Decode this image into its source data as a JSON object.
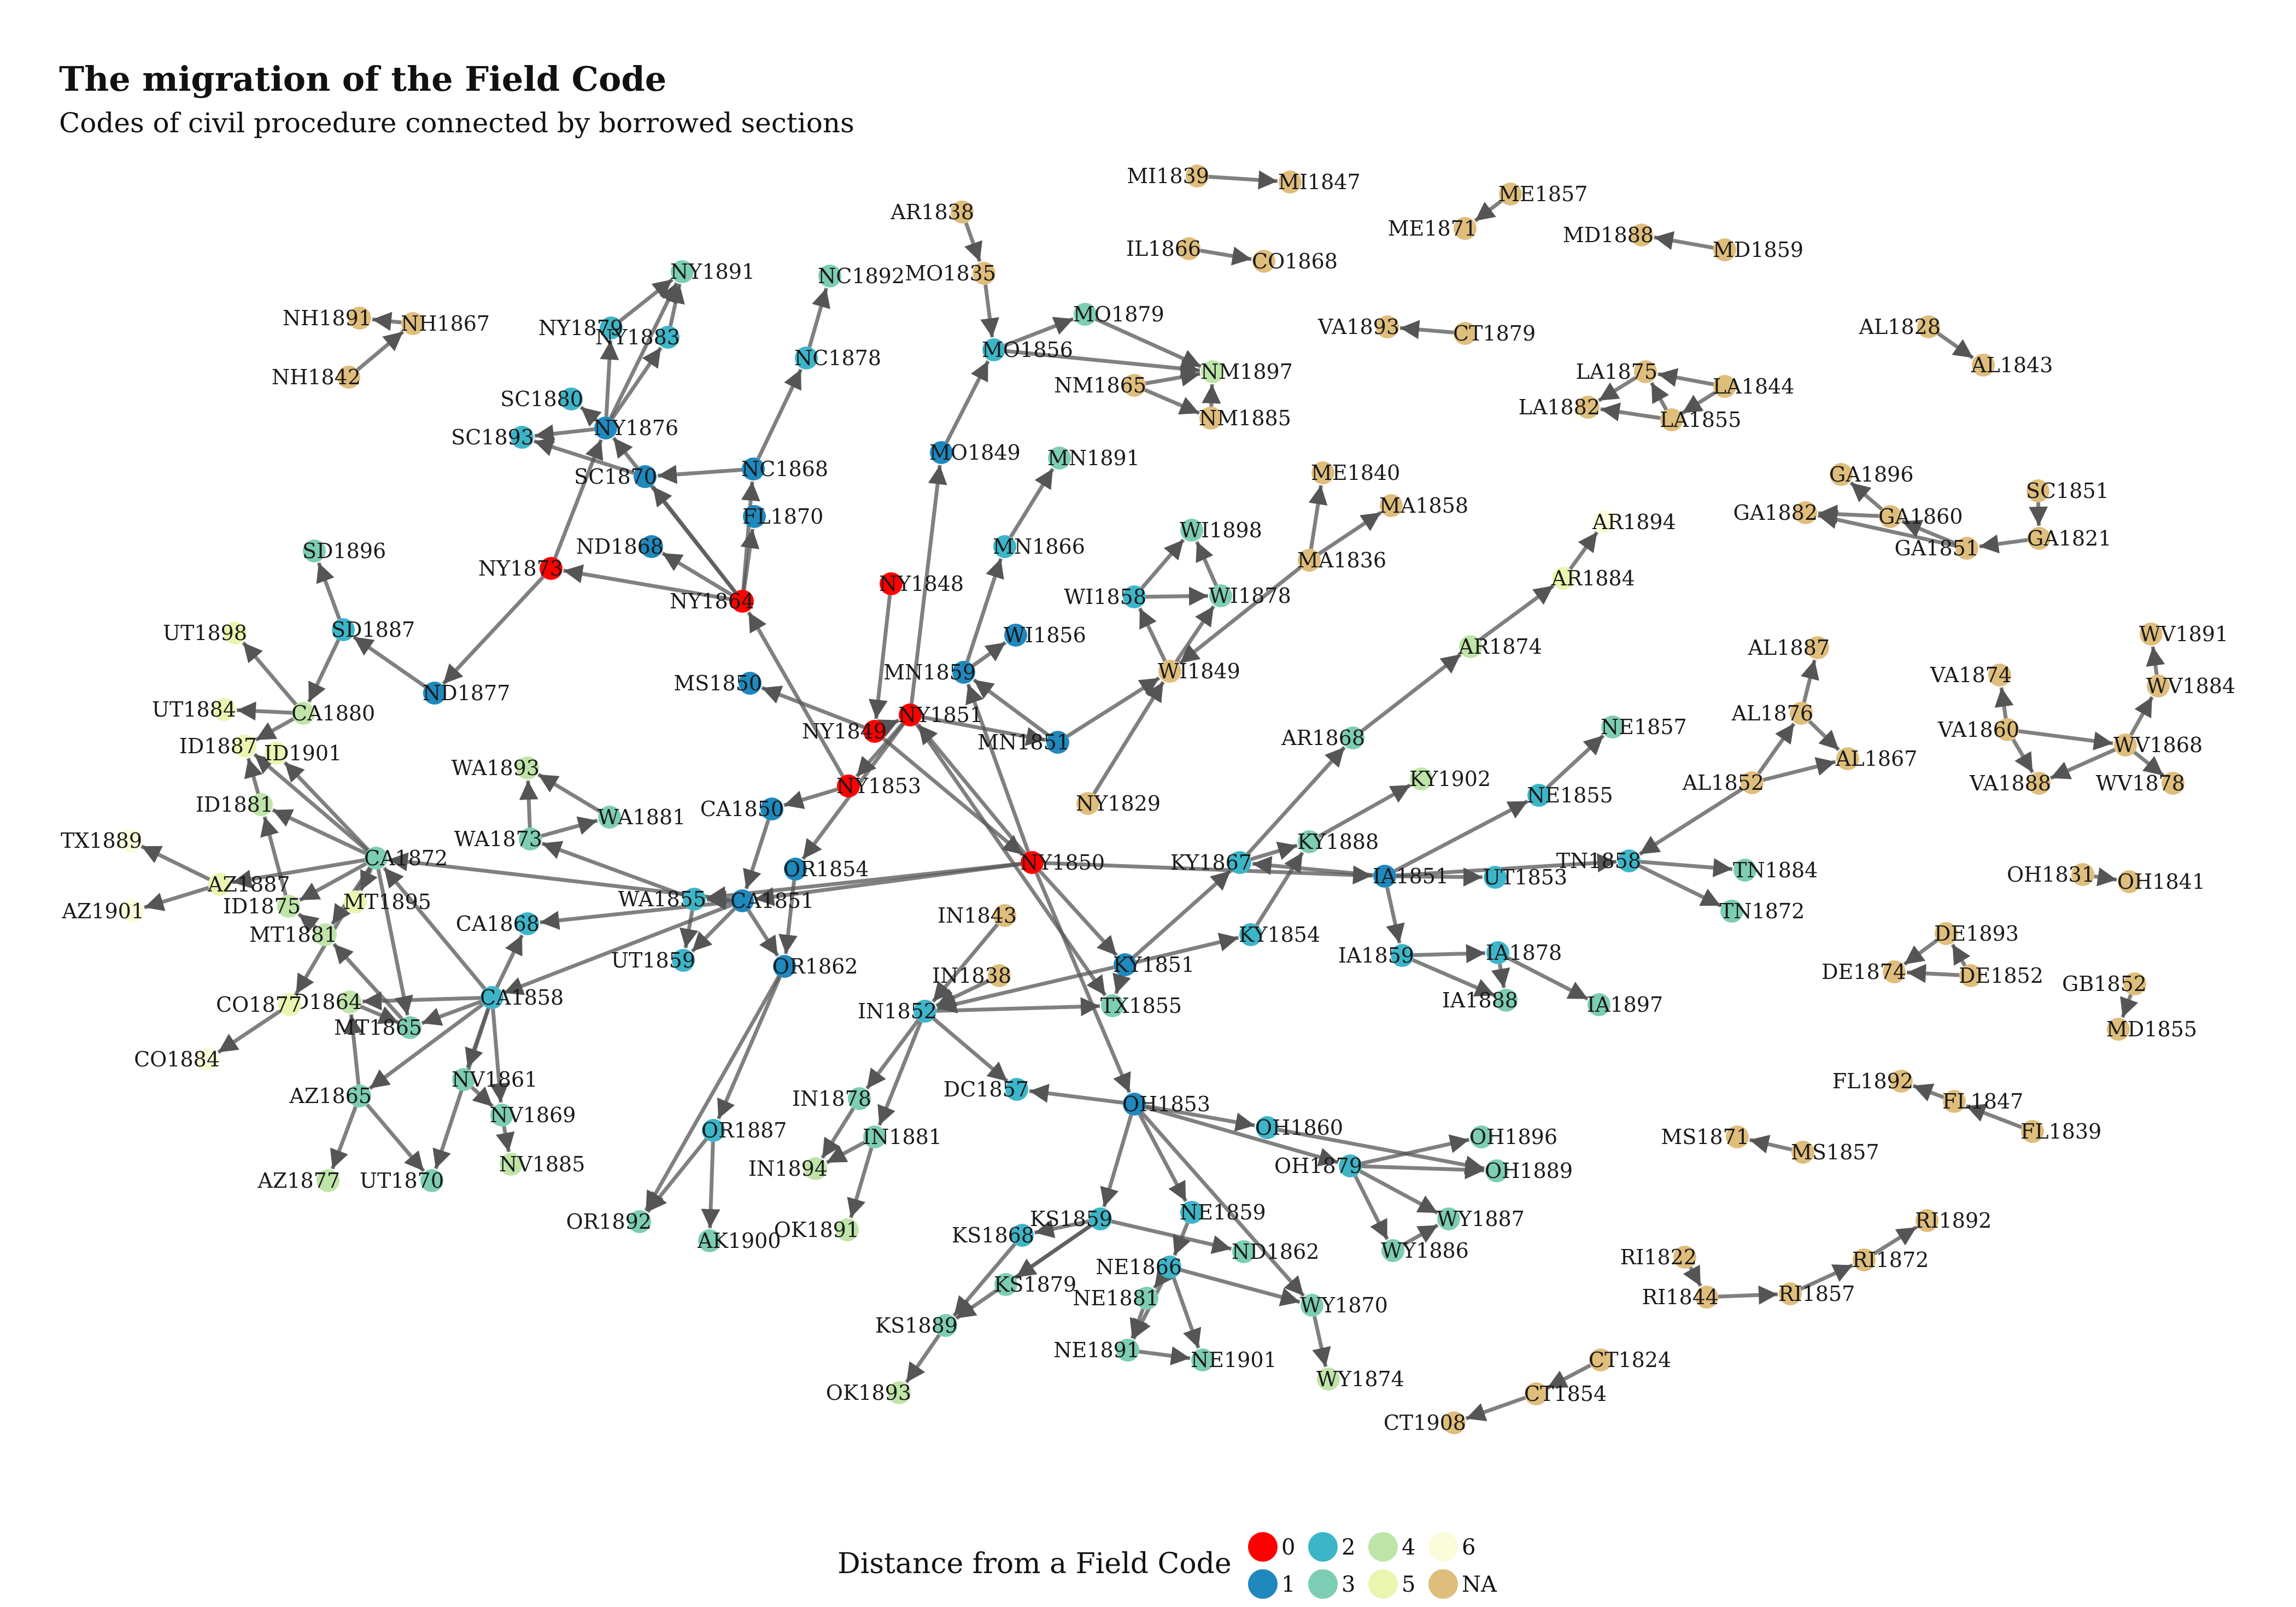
{
  "title": "The migration of the Field Code",
  "subtitle": "Codes of civil procedure connected by borrowed sections",
  "legend": {
    "title": "Distance from a Field Code",
    "items": [
      {
        "label": "0",
        "color": "#ff0000"
      },
      {
        "label": "1",
        "color": "#1f88bd"
      },
      {
        "label": "2",
        "color": "#3db5c8"
      },
      {
        "label": "3",
        "color": "#7ccdb4"
      },
      {
        "label": "4",
        "color": "#bfe4a8"
      },
      {
        "label": "5",
        "color": "#eaf6b0"
      },
      {
        "label": "6",
        "color": "#fbfcd9"
      },
      {
        "label": "NA",
        "color": "#dfbd7b"
      }
    ]
  },
  "colors": {
    "0": "#ff0000",
    "1": "#1f88bd",
    "2": "#3db5c8",
    "3": "#7ccdb4",
    "4": "#bfe4a8",
    "5": "#eaf6b0",
    "6": "#fbfcd9",
    "NA": "#dfbd7b",
    "edge": "#555555"
  },
  "nodes": [
    {
      "id": "NY1848",
      "d": "0"
    },
    {
      "id": "NY1849",
      "d": "0"
    },
    {
      "id": "NY1850",
      "d": "0"
    },
    {
      "id": "NY1851",
      "d": "0"
    },
    {
      "id": "NY1853",
      "d": "0"
    },
    {
      "id": "NY1864",
      "d": "0"
    },
    {
      "id": "NY1873",
      "d": "0"
    },
    {
      "id": "MS1850",
      "d": "1"
    },
    {
      "id": "MN1859",
      "d": "1"
    },
    {
      "id": "MN1851",
      "d": "1"
    },
    {
      "id": "WI1856",
      "d": "1"
    },
    {
      "id": "MO1849",
      "d": "1"
    },
    {
      "id": "CA1850",
      "d": "1"
    },
    {
      "id": "OR1854",
      "d": "1"
    },
    {
      "id": "OR1862",
      "d": "1"
    },
    {
      "id": "CA1851",
      "d": "1"
    },
    {
      "id": "KY1851",
      "d": "1"
    },
    {
      "id": "OH1853",
      "d": "1"
    },
    {
      "id": "IA1851",
      "d": "1"
    },
    {
      "id": "ND1868",
      "d": "1"
    },
    {
      "id": "FL1870",
      "d": "1"
    },
    {
      "id": "NC1868",
      "d": "1"
    },
    {
      "id": "SC1870",
      "d": "1"
    },
    {
      "id": "NY1876",
      "d": "1"
    },
    {
      "id": "ND1877",
      "d": "1"
    },
    {
      "id": "NY1879",
      "d": "2"
    },
    {
      "id": "NY1883",
      "d": "2"
    },
    {
      "id": "SC1880",
      "d": "2"
    },
    {
      "id": "SC1893",
      "d": "2"
    },
    {
      "id": "NC1878",
      "d": "2"
    },
    {
      "id": "MO1856",
      "d": "2"
    },
    {
      "id": "MN1866",
      "d": "2"
    },
    {
      "id": "WI1858",
      "d": "2"
    },
    {
      "id": "SD1887",
      "d": "2"
    },
    {
      "id": "WA1855",
      "d": "2"
    },
    {
      "id": "UT1859",
      "d": "2"
    },
    {
      "id": "CA1868",
      "d": "2"
    },
    {
      "id": "CA1858",
      "d": "2"
    },
    {
      "id": "IN1852",
      "d": "2"
    },
    {
      "id": "DC1857",
      "d": "2"
    },
    {
      "id": "KY1867",
      "d": "2"
    },
    {
      "id": "KY1854",
      "d": "2"
    },
    {
      "id": "UT1853",
      "d": "2"
    },
    {
      "id": "TN1858",
      "d": "2"
    },
    {
      "id": "IA1859",
      "d": "2"
    },
    {
      "id": "IA1878",
      "d": "2"
    },
    {
      "id": "OH1860",
      "d": "2"
    },
    {
      "id": "OH1879",
      "d": "2"
    },
    {
      "id": "KS1859",
      "d": "2"
    },
    {
      "id": "KS1868",
      "d": "2"
    },
    {
      "id": "NE1859",
      "d": "2"
    },
    {
      "id": "NE1866",
      "d": "2"
    },
    {
      "id": "OR1887",
      "d": "2"
    },
    {
      "id": "NE1855",
      "d": "2"
    },
    {
      "id": "MO1879",
      "d": "3"
    },
    {
      "id": "NY1891",
      "d": "3"
    },
    {
      "id": "NC1892",
      "d": "3"
    },
    {
      "id": "MN1891",
      "d": "3"
    },
    {
      "id": "WI1898",
      "d": "3"
    },
    {
      "id": "WI1878",
      "d": "3"
    },
    {
      "id": "SD1896",
      "d": "3"
    },
    {
      "id": "CA1872",
      "d": "3"
    },
    {
      "id": "WA1881",
      "d": "3"
    },
    {
      "id": "WA1873",
      "d": "3"
    },
    {
      "id": "MT1865",
      "d": "3"
    },
    {
      "id": "AZ1865",
      "d": "3"
    },
    {
      "id": "NV1861",
      "d": "3"
    },
    {
      "id": "NV1869",
      "d": "3"
    },
    {
      "id": "UT1870",
      "d": "3"
    },
    {
      "id": "IN1878",
      "d": "3"
    },
    {
      "id": "IN1881",
      "d": "3"
    },
    {
      "id": "TX1855",
      "d": "3"
    },
    {
      "id": "AR1868",
      "d": "3"
    },
    {
      "id": "KY1888",
      "d": "3"
    },
    {
      "id": "NE1857",
      "d": "3"
    },
    {
      "id": "TN1884",
      "d": "3"
    },
    {
      "id": "TN1872",
      "d": "3"
    },
    {
      "id": "IA1888",
      "d": "3"
    },
    {
      "id": "IA1897",
      "d": "3"
    },
    {
      "id": "OH1896",
      "d": "3"
    },
    {
      "id": "OH1889",
      "d": "3"
    },
    {
      "id": "WY1887",
      "d": "3"
    },
    {
      "id": "WY1886",
      "d": "3"
    },
    {
      "id": "WY1870",
      "d": "3"
    },
    {
      "id": "ND1862",
      "d": "3"
    },
    {
      "id": "KS1879",
      "d": "3"
    },
    {
      "id": "KS1889",
      "d": "3"
    },
    {
      "id": "NE1881",
      "d": "3"
    },
    {
      "id": "NE1891",
      "d": "3"
    },
    {
      "id": "NE1901",
      "d": "3"
    },
    {
      "id": "OR1892",
      "d": "3"
    },
    {
      "id": "AK1900",
      "d": "3"
    },
    {
      "id": "NM1897",
      "d": "4"
    },
    {
      "id": "AR1874",
      "d": "4"
    },
    {
      "id": "KY1902",
      "d": "4"
    },
    {
      "id": "WA1893",
      "d": "4"
    },
    {
      "id": "CA1880",
      "d": "4"
    },
    {
      "id": "ID1875",
      "d": "4"
    },
    {
      "id": "MT1881",
      "d": "4"
    },
    {
      "id": "ID1864",
      "d": "4"
    },
    {
      "id": "AZ1877",
      "d": "4"
    },
    {
      "id": "NV1885",
      "d": "4"
    },
    {
      "id": "IN1894",
      "d": "4"
    },
    {
      "id": "OK1891",
      "d": "4"
    },
    {
      "id": "WY1874",
      "d": "4"
    },
    {
      "id": "OK1893",
      "d": "4"
    },
    {
      "id": "ID1881",
      "d": "4"
    },
    {
      "id": "ID1887",
      "d": "5"
    },
    {
      "id": "ID1901",
      "d": "5"
    },
    {
      "id": "UT1884",
      "d": "5"
    },
    {
      "id": "MT1895",
      "d": "5"
    },
    {
      "id": "AZ1887",
      "d": "5"
    },
    {
      "id": "CO1877",
      "d": "5"
    },
    {
      "id": "AR1884",
      "d": "5"
    },
    {
      "id": "UT1898",
      "d": "5"
    },
    {
      "id": "TX1889",
      "d": "6"
    },
    {
      "id": "AZ1901",
      "d": "6"
    },
    {
      "id": "CO1884",
      "d": "6"
    },
    {
      "id": "AR1894",
      "d": "6"
    },
    {
      "id": "AR1838",
      "d": "NA"
    },
    {
      "id": "MO1835",
      "d": "NA"
    },
    {
      "id": "NH1891",
      "d": "NA"
    },
    {
      "id": "NH1867",
      "d": "NA"
    },
    {
      "id": "NH1842",
      "d": "NA"
    },
    {
      "id": "NM1865",
      "d": "NA"
    },
    {
      "id": "NM1885",
      "d": "NA"
    },
    {
      "id": "ME1840",
      "d": "NA"
    },
    {
      "id": "MA1858",
      "d": "NA"
    },
    {
      "id": "MA1836",
      "d": "NA"
    },
    {
      "id": "WI1849",
      "d": "NA"
    },
    {
      "id": "NY1829",
      "d": "NA"
    },
    {
      "id": "IN1843",
      "d": "NA"
    },
    {
      "id": "IN1838",
      "d": "NA"
    },
    {
      "id": "MI1839",
      "d": "NA"
    },
    {
      "id": "MI1847",
      "d": "NA"
    },
    {
      "id": "IL1866",
      "d": "NA"
    },
    {
      "id": "CO1868",
      "d": "NA"
    },
    {
      "id": "ME1857",
      "d": "NA"
    },
    {
      "id": "ME1871",
      "d": "NA"
    },
    {
      "id": "MD1888",
      "d": "NA"
    },
    {
      "id": "MD1859",
      "d": "NA"
    },
    {
      "id": "VA1893",
      "d": "NA"
    },
    {
      "id": "CT1879",
      "d": "NA"
    },
    {
      "id": "AL1828",
      "d": "NA"
    },
    {
      "id": "AL1843",
      "d": "NA"
    },
    {
      "id": "LA1875",
      "d": "NA"
    },
    {
      "id": "LA1844",
      "d": "NA"
    },
    {
      "id": "LA1882",
      "d": "NA"
    },
    {
      "id": "LA1855",
      "d": "NA"
    },
    {
      "id": "GA1896",
      "d": "NA"
    },
    {
      "id": "GA1882",
      "d": "NA"
    },
    {
      "id": "GA1860",
      "d": "NA"
    },
    {
      "id": "GA1851",
      "d": "NA"
    },
    {
      "id": "GA1821",
      "d": "NA"
    },
    {
      "id": "SC1851",
      "d": "NA"
    },
    {
      "id": "AL1887",
      "d": "NA"
    },
    {
      "id": "AL1876",
      "d": "NA"
    },
    {
      "id": "AL1867",
      "d": "NA"
    },
    {
      "id": "AL1852",
      "d": "NA"
    },
    {
      "id": "WV1891",
      "d": "NA"
    },
    {
      "id": "VA1874",
      "d": "NA"
    },
    {
      "id": "WV1884",
      "d": "NA"
    },
    {
      "id": "VA1860",
      "d": "NA"
    },
    {
      "id": "WV1868",
      "d": "NA"
    },
    {
      "id": "VA1888",
      "d": "NA"
    },
    {
      "id": "WV1878",
      "d": "NA"
    },
    {
      "id": "OH1831",
      "d": "NA"
    },
    {
      "id": "OH1841",
      "d": "NA"
    },
    {
      "id": "DE1893",
      "d": "NA"
    },
    {
      "id": "DE1874",
      "d": "NA"
    },
    {
      "id": "DE1852",
      "d": "NA"
    },
    {
      "id": "GB1852",
      "d": "NA"
    },
    {
      "id": "MD1855",
      "d": "NA"
    },
    {
      "id": "FL1892",
      "d": "NA"
    },
    {
      "id": "FL1847",
      "d": "NA"
    },
    {
      "id": "FL1839",
      "d": "NA"
    },
    {
      "id": "MS1871",
      "d": "NA"
    },
    {
      "id": "MS1857",
      "d": "NA"
    },
    {
      "id": "RI1892",
      "d": "NA"
    },
    {
      "id": "RI1872",
      "d": "NA"
    },
    {
      "id": "RI1822",
      "d": "NA"
    },
    {
      "id": "RI1844",
      "d": "NA"
    },
    {
      "id": "RI1857",
      "d": "NA"
    },
    {
      "id": "CT1824",
      "d": "NA"
    },
    {
      "id": "CT1854",
      "d": "NA"
    },
    {
      "id": "CT1908",
      "d": "NA"
    }
  ],
  "edges": [
    [
      "NY1848",
      "NY1849"
    ],
    [
      "NY1849",
      "NY1851"
    ],
    [
      "NY1851",
      "NY1853"
    ],
    [
      "NY1849",
      "NY1850"
    ],
    [
      "NY1850",
      "NY1851"
    ],
    [
      "NY1853",
      "NY1864"
    ],
    [
      "NY1864",
      "NY1873"
    ],
    [
      "NY1849",
      "MS1850"
    ],
    [
      "NY1851",
      "MN1851"
    ],
    [
      "NY1853",
      "CA1850"
    ],
    [
      "NY1850",
      "CA1851"
    ],
    [
      "NY1851",
      "OR1854"
    ],
    [
      "NY1850",
      "KY1851"
    ],
    [
      "NY1850",
      "OH1853"
    ],
    [
      "NY1850",
      "IA1851"
    ],
    [
      "NY1851",
      "MO1849"
    ],
    [
      "NY1864",
      "ND1868"
    ],
    [
      "NY1864",
      "FL1870"
    ],
    [
      "NY1864",
      "NC1868"
    ],
    [
      "NY1864",
      "SC1870"
    ],
    [
      "NY1864",
      "NY1876"
    ],
    [
      "NY1873",
      "NY1876"
    ],
    [
      "NY1873",
      "ND1877"
    ],
    [
      "NY1850",
      "MN1859"
    ],
    [
      "NY1850",
      "WA1855"
    ],
    [
      "NY1876",
      "NY1879"
    ],
    [
      "NY1876",
      "NY1883"
    ],
    [
      "NY1876",
      "NY1891"
    ],
    [
      "NY1879",
      "NY1891"
    ],
    [
      "NY1883",
      "NY1891"
    ],
    [
      "NY1876",
      "SC1880"
    ],
    [
      "NY1876",
      "SC1893"
    ],
    [
      "NC1868",
      "SC1870"
    ],
    [
      "SC1870",
      "SC1893"
    ],
    [
      "NC1868",
      "NC1878"
    ],
    [
      "NC1878",
      "NC1892"
    ],
    [
      "MO1849",
      "MO1856"
    ],
    [
      "MO1835",
      "MO1856"
    ],
    [
      "AR1838",
      "MO1835"
    ],
    [
      "MO1856",
      "MO1879"
    ],
    [
      "MO1856",
      "NM1897"
    ],
    [
      "MO1879",
      "NM1897"
    ],
    [
      "NM1865",
      "NM1897"
    ],
    [
      "NM1865",
      "NM1885"
    ],
    [
      "NM1885",
      "NM1897"
    ],
    [
      "MN1851",
      "MN1859"
    ],
    [
      "MN1859",
      "MN1866"
    ],
    [
      "MN1866",
      "MN1891"
    ],
    [
      "MN1859",
      "WI1856"
    ],
    [
      "MN1851",
      "WI1849"
    ],
    [
      "NY1829",
      "WI1849"
    ],
    [
      "WI1849",
      "WI1858"
    ],
    [
      "WI1849",
      "WI1878"
    ],
    [
      "WI1858",
      "WI1898"
    ],
    [
      "WI1858",
      "WI1878"
    ],
    [
      "WI1878",
      "WI1898"
    ],
    [
      "MA1836",
      "WI1849"
    ],
    [
      "MA1836",
      "ME1840"
    ],
    [
      "MA1836",
      "MA1858"
    ],
    [
      "ND1877",
      "SD1887"
    ],
    [
      "SD1887",
      "SD1896"
    ],
    [
      "SD1887",
      "CA1880"
    ],
    [
      "CA1880",
      "UT1884"
    ],
    [
      "CA1880",
      "UT1898"
    ],
    [
      "CA1880",
      "ID1887"
    ],
    [
      "CA1872",
      "ID1887"
    ],
    [
      "CA1872",
      "ID1901"
    ],
    [
      "CA1872",
      "ID1881"
    ],
    [
      "CA1872",
      "ID1875"
    ],
    [
      "CA1872",
      "AZ1887"
    ],
    [
      "CA1872",
      "MT1881"
    ],
    [
      "CA1872",
      "MT1895"
    ],
    [
      "CA1872",
      "CO1877"
    ],
    [
      "CA1851",
      "CA1872"
    ],
    [
      "CA1858",
      "CA1872"
    ],
    [
      "ID1881",
      "ID1887"
    ],
    [
      "ID1875",
      "ID1881"
    ],
    [
      "AZ1887",
      "TX1889"
    ],
    [
      "AZ1887",
      "AZ1901"
    ],
    [
      "MT1881",
      "ID1875"
    ],
    [
      "CO1877",
      "CO1884"
    ],
    [
      "CA1851",
      "WA1855"
    ],
    [
      "WA1855",
      "WA1873"
    ],
    [
      "WA1873",
      "WA1881"
    ],
    [
      "WA1873",
      "WA1893"
    ],
    [
      "WA1881",
      "WA1893"
    ],
    [
      "WA1855",
      "UT1859"
    ],
    [
      "CA1851",
      "CA1868"
    ],
    [
      "CA1851",
      "CA1858"
    ],
    [
      "CA1851",
      "UT1859"
    ],
    [
      "CA1850",
      "CA1851"
    ],
    [
      "CA1858",
      "MT1865"
    ],
    [
      "CA1858",
      "ID1864"
    ],
    [
      "CA1858",
      "NV1861"
    ],
    [
      "CA1858",
      "NV1869"
    ],
    [
      "CA1858",
      "UT1870"
    ],
    [
      "CA1858",
      "AZ1865"
    ],
    [
      "CA1858",
      "CA1868"
    ],
    [
      "NV1861",
      "NV1869"
    ],
    [
      "NV1869",
      "NV1885"
    ],
    [
      "MT1865",
      "MT1881"
    ],
    [
      "ID1864",
      "MT1865"
    ],
    [
      "AZ1865",
      "AZ1877"
    ],
    [
      "AZ1865",
      "UT1870"
    ],
    [
      "AZ1865",
      "ID1864"
    ],
    [
      "CA1872",
      "MT1865"
    ],
    [
      "OR1854",
      "OR1862"
    ],
    [
      "CA1851",
      "OR1862"
    ],
    [
      "OR1862",
      "OR1887"
    ],
    [
      "OR1887",
      "OR1892"
    ],
    [
      "OR1887",
      "AK1900"
    ],
    [
      "OR1862",
      "OR1892"
    ],
    [
      "IN1843",
      "IN1852"
    ],
    [
      "IN1838",
      "IN1852"
    ],
    [
      "IN1852",
      "IN1878"
    ],
    [
      "IN1852",
      "IN1881"
    ],
    [
      "IN1878",
      "IN1894"
    ],
    [
      "IN1881",
      "IN1894"
    ],
    [
      "IN1881",
      "OK1891"
    ],
    [
      "IN1852",
      "DC1857"
    ],
    [
      "KY1851",
      "IN1852"
    ],
    [
      "KY1851",
      "TX1855"
    ],
    [
      "KY1851",
      "KY1867"
    ],
    [
      "KY1851",
      "KY1854"
    ],
    [
      "KY1854",
      "KY1888"
    ],
    [
      "KY1867",
      "KY1888"
    ],
    [
      "KY1888",
      "KY1902"
    ],
    [
      "KY1867",
      "AR1868"
    ],
    [
      "AR1868",
      "AR1874"
    ],
    [
      "AR1874",
      "AR1884"
    ],
    [
      "AR1884",
      "AR1894"
    ],
    [
      "IA1851",
      "KY1867"
    ],
    [
      "IA1851",
      "UT1853"
    ],
    [
      "IA1851",
      "IA1859"
    ],
    [
      "IA1859",
      "IA1878"
    ],
    [
      "IA1859",
      "IA1888"
    ],
    [
      "IA1878",
      "IA1888"
    ],
    [
      "IA1878",
      "IA1897"
    ],
    [
      "IA1851",
      "NE1855"
    ],
    [
      "NE1855",
      "NE1857"
    ],
    [
      "IA1851",
      "TN1858"
    ],
    [
      "TN1858",
      "TN1884"
    ],
    [
      "TN1858",
      "TN1872"
    ],
    [
      "AL1852",
      "TN1858"
    ],
    [
      "OH1853",
      "DC1857"
    ],
    [
      "OH1853",
      "OH1860"
    ],
    [
      "OH1853",
      "OH1879"
    ],
    [
      "OH1879",
      "OH1896"
    ],
    [
      "OH1879",
      "OH1889"
    ],
    [
      "OH1879",
      "WY1887"
    ],
    [
      "OH1879",
      "WY1886"
    ],
    [
      "OH1853",
      "KS1859"
    ],
    [
      "KS1859",
      "KS1868"
    ],
    [
      "KS1859",
      "KS1879"
    ],
    [
      "KS1868",
      "KS1889"
    ],
    [
      "KS1889",
      "OK1893"
    ],
    [
      "OH1853",
      "NE1859"
    ],
    [
      "NE1859",
      "NE1866"
    ],
    [
      "NE1866",
      "NE1881"
    ],
    [
      "NE1866",
      "NE1891"
    ],
    [
      "NE1866",
      "NE1901"
    ],
    [
      "NE1881",
      "NE1891"
    ],
    [
      "NE1891",
      "NE1901"
    ],
    [
      "KS1859",
      "ND1862"
    ],
    [
      "OH1853",
      "WY1870"
    ],
    [
      "NE1866",
      "WY1870"
    ],
    [
      "WY1870",
      "WY1874"
    ],
    [
      "WY1886",
      "WY1887"
    ],
    [
      "OH1860",
      "OH1889"
    ],
    [
      "NY1851",
      "TX1855"
    ],
    [
      "IN1852",
      "TX1855"
    ],
    [
      "KS1859",
      "KS1889"
    ],
    [
      "NH1867",
      "NH1891"
    ],
    [
      "NH1842",
      "NH1867"
    ],
    [
      "MI1839",
      "MI1847"
    ],
    [
      "IL1866",
      "CO1868"
    ],
    [
      "ME1857",
      "ME1871"
    ],
    [
      "MD1859",
      "MD1888"
    ],
    [
      "CT1879",
      "VA1893"
    ],
    [
      "AL1828",
      "AL1843"
    ],
    [
      "LA1844",
      "LA1875"
    ],
    [
      "LA1855",
      "LA1875"
    ],
    [
      "LA1875",
      "LA1882"
    ],
    [
      "LA1855",
      "LA1882"
    ],
    [
      "LA1844",
      "LA1855"
    ],
    [
      "GA1860",
      "GA1896"
    ],
    [
      "GA1860",
      "GA1882"
    ],
    [
      "GA1851",
      "GA1860"
    ],
    [
      "GA1851",
      "GA1882"
    ],
    [
      "GA1821",
      "GA1851"
    ],
    [
      "SC1851",
      "GA1821"
    ],
    [
      "AL1876",
      "AL1887"
    ],
    [
      "AL1852",
      "AL1876"
    ],
    [
      "AL1852",
      "AL1867"
    ],
    [
      "AL1876",
      "AL1867"
    ],
    [
      "VA1860",
      "VA1874"
    ],
    [
      "VA1860",
      "VA1888"
    ],
    [
      "VA1860",
      "WV1868"
    ],
    [
      "WV1868",
      "WV1884"
    ],
    [
      "WV1884",
      "WV1891"
    ],
    [
      "WV1868",
      "WV1878"
    ],
    [
      "WV1868",
      "VA1888"
    ],
    [
      "OH1831",
      "OH1841"
    ],
    [
      "DE1852",
      "DE1874"
    ],
    [
      "DE1852",
      "DE1893"
    ],
    [
      "DE1893",
      "DE1874"
    ],
    [
      "GB1852",
      "MD1855"
    ],
    [
      "FL1847",
      "FL1892"
    ],
    [
      "FL1839",
      "FL1847"
    ],
    [
      "MS1857",
      "MS1871"
    ],
    [
      "RI1822",
      "RI1844"
    ],
    [
      "RI1844",
      "RI1857"
    ],
    [
      "RI1857",
      "RI1872"
    ],
    [
      "RI1872",
      "RI1892"
    ],
    [
      "CT1824",
      "CT1854"
    ],
    [
      "CT1854",
      "CT1908"
    ]
  ]
}
